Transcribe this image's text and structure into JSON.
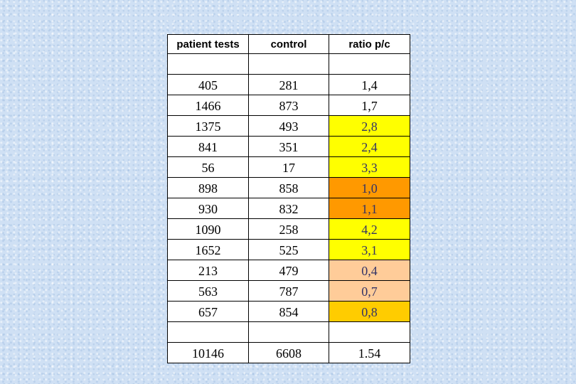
{
  "chart_data": {
    "type": "table",
    "columns": [
      "patient tests",
      "control",
      "ratio p/c"
    ],
    "rows": [
      {
        "patient": "405",
        "control": "281",
        "ratio": "1,4",
        "highlight": "none"
      },
      {
        "patient": "1466",
        "control": "873",
        "ratio": "1,7",
        "highlight": "none"
      },
      {
        "patient": "1375",
        "control": "493",
        "ratio": "2,8",
        "highlight": "yellow"
      },
      {
        "patient": "841",
        "control": "351",
        "ratio": "2,4",
        "highlight": "yellow"
      },
      {
        "patient": "56",
        "control": "17",
        "ratio": "3,3",
        "highlight": "yellow"
      },
      {
        "patient": "898",
        "control": "858",
        "ratio": "1,0",
        "highlight": "orange"
      },
      {
        "patient": "930",
        "control": "832",
        "ratio": "1,1",
        "highlight": "orange"
      },
      {
        "patient": "1090",
        "control": "258",
        "ratio": "4,2",
        "highlight": "yellow"
      },
      {
        "patient": "1652",
        "control": "525",
        "ratio": "3,1",
        "highlight": "yellow"
      },
      {
        "patient": "213",
        "control": "479",
        "ratio": "0,4",
        "highlight": "peach"
      },
      {
        "patient": "563",
        "control": "787",
        "ratio": "0,7",
        "highlight": "peach"
      },
      {
        "patient": "657",
        "control": "854",
        "ratio": "0,8",
        "highlight": "gold"
      }
    ],
    "totals": {
      "patient": "10146",
      "control": "6608",
      "ratio": "1.54"
    }
  },
  "colors": {
    "background": "#cfe0f4",
    "yellow": "#ffff00",
    "orange": "#ff9900",
    "peach": "#ffcc99",
    "gold": "#ffcc00",
    "ratio_text": "#333366"
  }
}
